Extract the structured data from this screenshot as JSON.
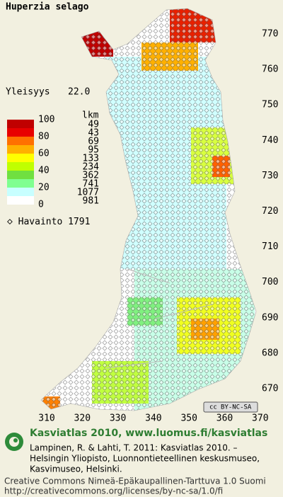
{
  "title": "Huperzia selago",
  "frequency": {
    "label": "Yleisyys",
    "value": "22.0"
  },
  "legend": {
    "percent_labels": [
      "100",
      "80",
      "60",
      "40",
      "20",
      "0"
    ],
    "count_header": "lkm",
    "counts": [
      "49",
      "43",
      "69",
      "95",
      "133",
      "234",
      "362",
      "741",
      "1077",
      "981"
    ],
    "observations": {
      "label": "Havainto",
      "value": "1791"
    }
  },
  "grid_labels": {
    "north": [
      "770",
      "760",
      "750",
      "740",
      "730",
      "720",
      "710",
      "700",
      "690",
      "680",
      "670"
    ],
    "east": [
      "310",
      "320",
      "330",
      "340",
      "350",
      "360",
      "370"
    ]
  },
  "license_badge": "BY-NC-SA",
  "footer": {
    "heading": "Kasviatlas 2010, www.luomus.fi/kasviatlas",
    "citation": [
      "Lampinen, R. & Lahti, T. 2011: Kasviatlas 2010. –",
      "Helsingin Yliopisto, Luonnontieteellinen keskusmuseo,",
      "Kasvimuseo, Helsinki."
    ],
    "license": "Creative Commons Nimeä-Epäkaupallinen-Tarttuva 1.0 Suomi",
    "url": "http://creativecommons.org/licenses/by-nc-sa/1.0/fi"
  }
}
